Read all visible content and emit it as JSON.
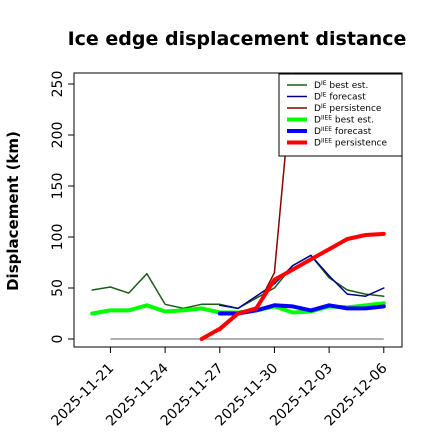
{
  "chart_data": {
    "type": "line",
    "title": "Ice edge displacement distance",
    "ylabel": "Displacement (km)",
    "xlabel": "",
    "ylim": [
      0,
      250
    ],
    "yticks": [
      0,
      50,
      100,
      150,
      200,
      250
    ],
    "xlim": [
      "2025-11-19",
      "2025-12-07"
    ],
    "xticks": [
      {
        "label": "2025-11-21",
        "color": "#000000"
      },
      {
        "label": "2025-11-24",
        "color": "#000000"
      },
      {
        "label": "2025-11-27",
        "color": "#228B22"
      },
      {
        "label": "2025-11-30",
        "color": "#000000"
      },
      {
        "label": "2025-12-03",
        "color": "#000000"
      },
      {
        "label": "2025-12-06",
        "color": "#000000"
      }
    ],
    "xtick_dates": [
      "2025-11-21",
      "2025-11-24",
      "2025-11-27",
      "2025-11-30",
      "2025-12-03",
      "2025-12-06"
    ],
    "legend_position": "top-right",
    "grid": false,
    "series": [
      {
        "name": "D^IE best est.",
        "name_base": "D",
        "name_sup": "IE",
        "name_rest": " best est.",
        "color": "#1a5c1a",
        "width": 1.5,
        "x": [
          "2025-11-20",
          "2025-11-21",
          "2025-11-22",
          "2025-11-23",
          "2025-11-24",
          "2025-11-25",
          "2025-11-26",
          "2025-11-27",
          "2025-11-28",
          "2025-11-29",
          "2025-11-30",
          "2025-12-01",
          "2025-12-02",
          "2025-12-03",
          "2025-12-04",
          "2025-12-05",
          "2025-12-06"
        ],
        "y": [
          48,
          51,
          45,
          64,
          34,
          30,
          34,
          34,
          30,
          40,
          50,
          72,
          82,
          60,
          48,
          44,
          42
        ]
      },
      {
        "name": "D^IE forecast",
        "name_base": "D",
        "name_sup": "IE",
        "name_rest": " forecast",
        "color": "#00008b",
        "width": 1.5,
        "x": [
          "2025-11-27",
          "2025-11-28",
          "2025-11-29",
          "2025-11-30",
          "2025-12-01",
          "2025-12-02",
          "2025-12-03",
          "2025-12-04",
          "2025-12-05",
          "2025-12-06"
        ],
        "y": [
          33,
          30,
          42,
          54,
          72,
          82,
          62,
          44,
          42,
          50
        ]
      },
      {
        "name": "D^IE persistence",
        "name_base": "D",
        "name_sup": "IE",
        "name_rest": " persistence",
        "color": "#8b0000",
        "width": 1.5,
        "x": [
          "2025-11-27",
          "2025-11-28",
          "2025-11-29",
          "2025-11-30",
          "2025-12-01"
        ],
        "y": [
          8,
          24,
          30,
          65,
          260
        ]
      },
      {
        "name": "D^IIEE best est.",
        "name_base": "D",
        "name_sup": "IIEE",
        "name_rest": " best est.",
        "color": "#00ff00",
        "width": 4,
        "x": [
          "2025-11-20",
          "2025-11-21",
          "2025-11-22",
          "2025-11-23",
          "2025-11-24",
          "2025-11-25",
          "2025-11-26",
          "2025-11-27",
          "2025-11-28",
          "2025-11-29",
          "2025-11-30",
          "2025-12-01",
          "2025-12-02",
          "2025-12-03",
          "2025-12-04",
          "2025-12-05",
          "2025-12-06"
        ],
        "y": [
          25,
          28,
          28,
          33,
          27,
          28,
          30,
          26,
          26,
          28,
          32,
          26,
          27,
          32,
          31,
          33,
          35
        ]
      },
      {
        "name": "D^IIEE forecast",
        "name_base": "D",
        "name_sup": "IIEE",
        "name_rest": " forecast",
        "color": "#0000ff",
        "width": 4,
        "x": [
          "2025-11-27",
          "2025-11-28",
          "2025-11-29",
          "2025-11-30",
          "2025-12-01",
          "2025-12-02",
          "2025-12-03",
          "2025-12-04",
          "2025-12-05",
          "2025-12-06"
        ],
        "y": [
          25,
          25,
          28,
          33,
          32,
          28,
          33,
          30,
          30,
          32
        ]
      },
      {
        "name": "D^IIEE persistence",
        "name_base": "D",
        "name_sup": "IIEE",
        "name_rest": " persistence",
        "color": "#ff0000",
        "width": 4,
        "x": [
          "2025-11-26",
          "2025-11-27",
          "2025-11-28",
          "2025-11-29",
          "2025-11-30",
          "2025-12-01",
          "2025-12-02",
          "2025-12-03",
          "2025-12-04",
          "2025-12-05",
          "2025-12-06"
        ],
        "y": [
          0,
          10,
          25,
          30,
          58,
          68,
          78,
          88,
          98,
          102,
          103
        ]
      }
    ],
    "reference_line": {
      "y": 0,
      "x": [
        "2025-11-21",
        "2025-12-06"
      ],
      "color": "#808080"
    }
  }
}
